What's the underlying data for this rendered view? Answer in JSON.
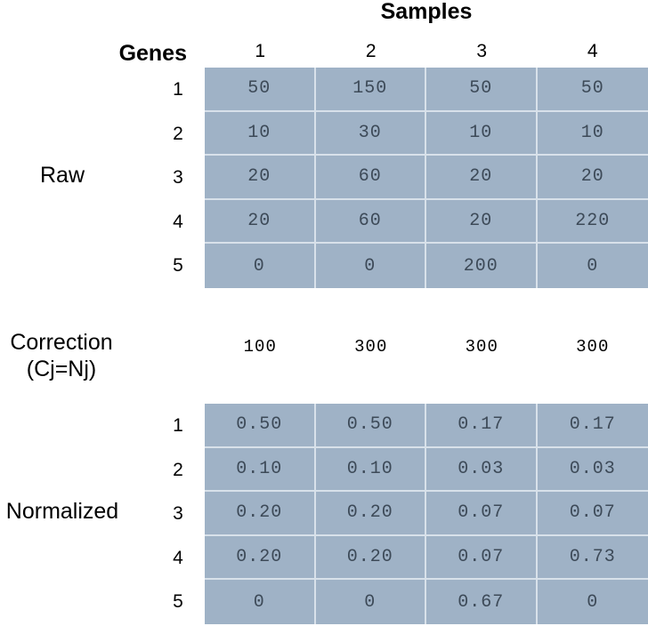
{
  "header": {
    "title": "Samples",
    "genes_label": "Genes"
  },
  "columns": [
    "1",
    "2",
    "3",
    "4"
  ],
  "raw": {
    "label": "Raw",
    "row_labels": [
      "1",
      "2",
      "3",
      "4",
      "5"
    ],
    "rows": [
      [
        "50",
        "150",
        "50",
        "50"
      ],
      [
        "10",
        "30",
        "10",
        "10"
      ],
      [
        "20",
        "60",
        "20",
        "20"
      ],
      [
        "20",
        "60",
        "20",
        "220"
      ],
      [
        "0",
        "0",
        "200",
        "0"
      ]
    ]
  },
  "correction": {
    "label_line1": "Correction",
    "label_line2": "(Cj=Nj)",
    "values": [
      "100",
      "300",
      "300",
      "300"
    ]
  },
  "normalized": {
    "label": "Normalized",
    "row_labels": [
      "1",
      "2",
      "3",
      "4",
      "5"
    ],
    "rows": [
      [
        "0.50",
        "0.50",
        "0.17",
        "0.17"
      ],
      [
        "0.10",
        "0.10",
        "0.03",
        "0.03"
      ],
      [
        "0.20",
        "0.20",
        "0.07",
        "0.07"
      ],
      [
        "0.20",
        "0.20",
        "0.07",
        "0.73"
      ],
      [
        "0",
        "0",
        "0.67",
        "0"
      ]
    ]
  },
  "colors": {
    "cell_fill": "#9fb2c6",
    "cell_border": "#d8e1ea",
    "cell_text": "#3d4a58"
  }
}
